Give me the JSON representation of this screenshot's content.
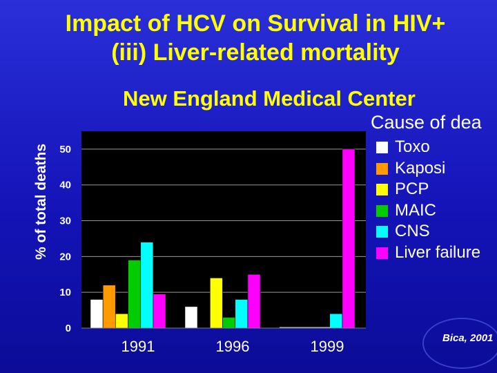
{
  "title_line1": "Impact of HCV on Survival in HIV+",
  "title_line2": "(iii) Liver-related mortality",
  "subtitle": "New England Medical Center",
  "source": "Bica, 2001",
  "chart_data": {
    "type": "bar",
    "title": "Impact of HCV on Survival in HIV+ (iii) Liver-related mortality",
    "subtitle": "New England Medical Center",
    "xlabel": "",
    "ylabel": "% of total deaths",
    "ylim": [
      0,
      55
    ],
    "yticks": [
      0,
      10,
      20,
      30,
      40,
      50
    ],
    "categories": [
      "1991",
      "1996",
      "1999"
    ],
    "legend_title": "Cause of dea",
    "legend_position": "right",
    "series": [
      {
        "name": "Toxo",
        "color": "#ffffff",
        "values": [
          8,
          6,
          0
        ]
      },
      {
        "name": "Kaposi",
        "color": "#ff9900",
        "values": [
          12,
          0,
          0
        ]
      },
      {
        "name": "PCP",
        "color": "#ffff00",
        "values": [
          4,
          14,
          0
        ]
      },
      {
        "name": "MAIC",
        "color": "#00cc00",
        "values": [
          19,
          3,
          0
        ]
      },
      {
        "name": "CNS",
        "color": "#00ffff",
        "values": [
          24,
          8,
          4
        ]
      },
      {
        "name": "Liver failure",
        "color": "#ff00ff",
        "values": [
          9.5,
          15,
          50
        ]
      }
    ]
  }
}
